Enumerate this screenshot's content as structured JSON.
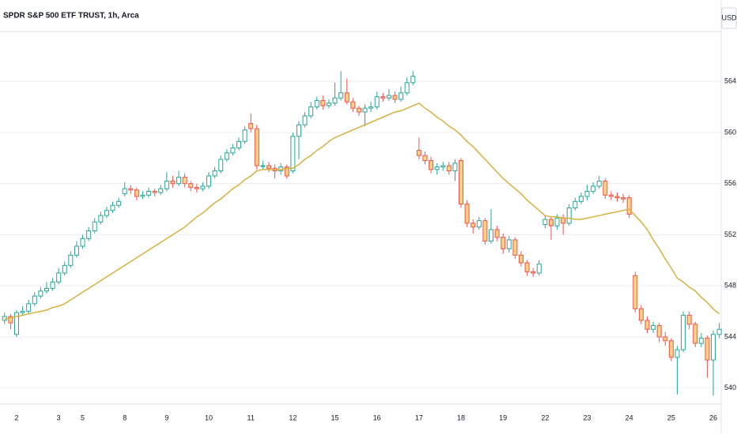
{
  "chart_data": {
    "type": "candlestick",
    "title": "SPDR S&P 500 ETF TRUST, 1h, Arca",
    "currency": "USD",
    "categories": [
      null,
      null,
      "2",
      null,
      null,
      null,
      null,
      null,
      null,
      "3",
      null,
      null,
      null,
      "5",
      null,
      null,
      null,
      null,
      null,
      null,
      "8",
      null,
      null,
      null,
      null,
      null,
      null,
      "9",
      null,
      null,
      null,
      null,
      null,
      null,
      "10",
      null,
      null,
      null,
      null,
      null,
      null,
      "11",
      null,
      null,
      null,
      null,
      null,
      null,
      "12",
      null,
      null,
      null,
      null,
      null,
      null,
      "15",
      null,
      null,
      null,
      null,
      null,
      null,
      "16",
      null,
      null,
      null,
      null,
      null,
      null,
      "17",
      null,
      null,
      null,
      null,
      null,
      null,
      "18",
      null,
      null,
      null,
      null,
      null,
      null,
      "19",
      null,
      null,
      null,
      null,
      null,
      null,
      "22",
      null,
      null,
      null,
      null,
      null,
      null,
      "23",
      null,
      null,
      null,
      null,
      null,
      null,
      "24",
      null,
      null,
      null,
      null,
      null,
      null,
      "25",
      null,
      null,
      null,
      null,
      null,
      null,
      "26",
      null
    ],
    "open": [
      545.3,
      545.6,
      544.2,
      545.9,
      546.0,
      546.6,
      547.2,
      547.6,
      547.8,
      548.3,
      549.0,
      549.6,
      550.4,
      551.1,
      551.7,
      552.3,
      553.0,
      553.5,
      553.9,
      554.3,
      555.2,
      555.6,
      555.5,
      555.0,
      555.1,
      555.4,
      555.3,
      555.6,
      556.2,
      556.0,
      556.5,
      556.0,
      555.7,
      555.6,
      555.8,
      556.6,
      557.0,
      557.9,
      558.4,
      558.8,
      559.3,
      560.7,
      560.3,
      557.4,
      557.4,
      557.2,
      557.0,
      557.3,
      557.0,
      559.7,
      560.6,
      561.3,
      562.0,
      562.5,
      562.1,
      562.3,
      562.7,
      563.1,
      562.4,
      561.9,
      561.6,
      561.9,
      562.0,
      562.8,
      562.7,
      562.9,
      562.6,
      563.1,
      563.9,
      558.6,
      558.2,
      557.8,
      557.1,
      557.3,
      557.4,
      557.0,
      557.8,
      554.4,
      552.9,
      552.6,
      553.1,
      551.5,
      552.4,
      551.8,
      550.9,
      551.6,
      550.4,
      549.8,
      549.1,
      549.0,
      552.8,
      553.2,
      552.7,
      553.3,
      552.9,
      554.1,
      554.6,
      555.0,
      555.4,
      555.8,
      556.2,
      555.1,
      555.0,
      554.9,
      554.9,
      548.8,
      546.2,
      545.3,
      544.6,
      544.9,
      544.0,
      543.7,
      542.4,
      543.0,
      545.7,
      545.0,
      543.5,
      543.9,
      542.2,
      544.2
    ],
    "high": [
      545.9,
      545.8,
      546.1,
      546.4,
      546.9,
      547.5,
      547.9,
      548.3,
      548.6,
      549.4,
      549.9,
      550.7,
      551.5,
      552.0,
      552.6,
      553.3,
      553.8,
      554.2,
      554.6,
      554.9,
      556.1,
      555.9,
      555.7,
      555.4,
      555.7,
      555.6,
      555.9,
      556.9,
      556.6,
      557.0,
      556.8,
      556.2,
      556.0,
      556.1,
      556.9,
      557.3,
      558.2,
      558.7,
      559.1,
      559.6,
      560.5,
      561.5,
      560.6,
      557.8,
      557.7,
      557.5,
      557.6,
      557.5,
      560.0,
      560.9,
      561.6,
      562.4,
      562.8,
      562.9,
      562.6,
      563.9,
      564.8,
      564.2,
      562.7,
      562.1,
      562.2,
      562.4,
      563.2,
      563.1,
      563.4,
      563.2,
      563.6,
      564.3,
      564.8,
      559.6,
      558.5,
      558.1,
      557.6,
      557.7,
      557.7,
      557.9,
      558.0,
      554.7,
      553.2,
      553.4,
      553.3,
      554.0,
      552.7,
      552.1,
      551.9,
      551.8,
      550.7,
      550.0,
      549.4,
      550.0,
      553.5,
      553.4,
      553.6,
      553.6,
      554.4,
      554.9,
      555.3,
      555.9,
      556.1,
      556.6,
      556.4,
      555.4,
      555.3,
      555.2,
      555.1,
      549.1,
      546.5,
      545.6,
      545.2,
      545.1,
      544.4,
      543.9,
      543.3,
      546.0,
      546.0,
      545.2,
      544.3,
      544.1,
      544.5,
      545.1
    ],
    "low": [
      545.0,
      544.6,
      544.0,
      545.7,
      545.8,
      546.4,
      547.0,
      547.4,
      547.6,
      548.1,
      548.8,
      549.4,
      550.2,
      550.9,
      551.5,
      552.1,
      552.8,
      553.3,
      553.7,
      554.1,
      555.0,
      555.2,
      554.7,
      554.8,
      554.9,
      555.0,
      555.1,
      555.4,
      555.7,
      555.8,
      555.7,
      555.4,
      555.3,
      555.4,
      555.6,
      556.4,
      556.8,
      557.7,
      558.2,
      558.6,
      559.1,
      560.0,
      557.1,
      557.1,
      556.9,
      556.4,
      556.7,
      556.4,
      556.8,
      557.9,
      560.4,
      561.1,
      561.8,
      561.8,
      561.9,
      562.1,
      562.5,
      562.2,
      561.6,
      561.3,
      560.5,
      561.6,
      561.8,
      562.4,
      562.5,
      562.3,
      562.4,
      562.9,
      563.7,
      557.9,
      557.5,
      556.8,
      556.7,
      557.0,
      556.7,
      556.2,
      554.1,
      552.6,
      552.1,
      552.4,
      551.2,
      551.3,
      551.5,
      550.5,
      550.6,
      550.1,
      549.5,
      548.8,
      548.7,
      548.8,
      552.5,
      551.6,
      552.4,
      552.0,
      552.7,
      553.9,
      554.4,
      554.7,
      555.2,
      555.6,
      554.8,
      554.7,
      554.6,
      554.5,
      553.3,
      545.9,
      545.0,
      544.3,
      544.3,
      543.6,
      543.3,
      542.1,
      539.5,
      542.8,
      544.6,
      543.2,
      543.2,
      540.8,
      539.4,
      543.9
    ],
    "close": [
      545.6,
      545.1,
      545.9,
      546.0,
      546.6,
      547.2,
      547.6,
      547.8,
      548.3,
      549.0,
      549.6,
      550.4,
      551.1,
      551.7,
      552.3,
      553.0,
      553.5,
      553.9,
      554.3,
      554.6,
      555.6,
      555.5,
      555.0,
      555.1,
      555.4,
      555.3,
      555.6,
      556.2,
      556.0,
      556.5,
      556.0,
      555.7,
      555.6,
      555.8,
      556.6,
      557.0,
      557.9,
      558.4,
      558.8,
      559.3,
      560.2,
      560.3,
      557.4,
      557.4,
      557.2,
      557.0,
      557.3,
      556.6,
      559.7,
      560.6,
      561.3,
      562.0,
      562.5,
      562.1,
      562.3,
      562.7,
      563.1,
      562.4,
      561.9,
      561.6,
      561.9,
      562.0,
      562.8,
      562.7,
      562.9,
      562.6,
      563.1,
      563.9,
      564.4,
      558.2,
      557.8,
      557.1,
      557.3,
      557.4,
      557.0,
      557.6,
      554.4,
      552.9,
      552.6,
      553.1,
      551.5,
      552.4,
      551.8,
      550.9,
      551.6,
      550.4,
      549.8,
      549.1,
      549.0,
      549.7,
      553.2,
      552.7,
      553.3,
      552.9,
      554.1,
      554.6,
      555.0,
      555.4,
      555.8,
      556.2,
      555.1,
      555.0,
      554.9,
      554.8,
      553.6,
      546.2,
      545.3,
      544.6,
      544.9,
      544.0,
      543.7,
      542.4,
      543.0,
      545.7,
      545.0,
      543.5,
      543.9,
      542.2,
      544.2,
      544.6
    ],
    "ma": {
      "color": "#d8b040",
      "values": [
        545.4,
        545.5,
        545.6,
        545.7,
        545.8,
        545.9,
        546.0,
        546.1,
        546.3,
        546.4,
        546.6,
        546.9,
        547.2,
        547.5,
        547.8,
        548.1,
        548.4,
        548.7,
        549.0,
        549.3,
        549.6,
        549.9,
        550.2,
        550.5,
        550.8,
        551.1,
        551.4,
        551.7,
        552.0,
        552.3,
        552.6,
        553.0,
        553.4,
        553.7,
        554.1,
        554.5,
        554.8,
        555.2,
        555.6,
        555.9,
        556.3,
        556.6,
        557.0,
        557.1,
        557.1,
        557.1,
        557.1,
        557.2,
        557.2,
        557.5,
        557.9,
        558.2,
        558.6,
        558.9,
        559.3,
        559.6,
        559.8,
        560.0,
        560.2,
        560.4,
        560.6,
        560.8,
        561.0,
        561.2,
        561.4,
        561.6,
        561.7,
        561.9,
        562.1,
        562.3,
        561.9,
        561.6,
        561.2,
        560.9,
        560.5,
        560.2,
        559.8,
        559.3,
        558.9,
        558.4,
        557.9,
        557.4,
        556.9,
        556.4,
        556.0,
        555.6,
        555.2,
        554.7,
        554.3,
        553.9,
        553.5,
        553.4,
        553.4,
        553.3,
        553.3,
        553.2,
        553.2,
        553.3,
        553.4,
        553.5,
        553.6,
        553.7,
        553.8,
        553.9,
        554.0,
        553.5,
        553.0,
        552.4,
        551.6,
        550.9,
        550.1,
        549.4,
        548.6,
        548.3,
        547.9,
        547.6,
        547.1,
        546.7,
        546.2,
        545.8
      ]
    },
    "up_color": "#26a69a",
    "up_fill": "#ffffff",
    "down_color": "#ef5350",
    "down_fill": "#ffd180",
    "ylim": [
      538.75,
      567.9
    ],
    "yticks": [
      {
        "value": 540,
        "label": "540.00"
      },
      {
        "value": 544,
        "label": "544.00"
      },
      {
        "value": 548,
        "label": "548.00"
      },
      {
        "value": 552,
        "label": "552.00"
      },
      {
        "value": 556,
        "label": "556.00"
      },
      {
        "value": 560,
        "label": "560.00"
      },
      {
        "value": 564,
        "label": "564.00"
      }
    ],
    "grid": true
  }
}
